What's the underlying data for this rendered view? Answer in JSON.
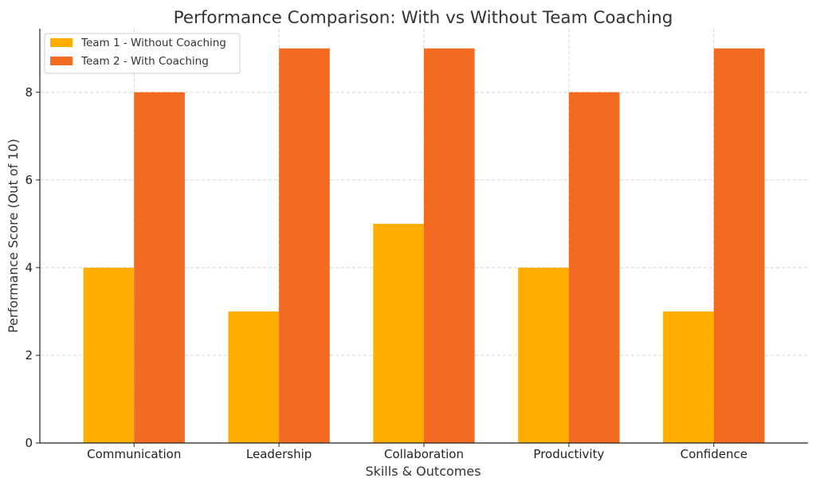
{
  "chart_data": {
    "type": "bar",
    "title": "Performance Comparison: With vs Without Team Coaching",
    "xlabel": "Skills & Outcomes",
    "ylabel": "Performance Score (Out of 10)",
    "categories": [
      "Communication",
      "Leadership",
      "Collaboration",
      "Productivity",
      "Confidence"
    ],
    "series": [
      {
        "name": "Team 1 - Without Coaching",
        "values": [
          4,
          3,
          5,
          4,
          3
        ],
        "color": "#FFAD00"
      },
      {
        "name": "Team 2 - With Coaching",
        "values": [
          8,
          9,
          9,
          8,
          9
        ],
        "color": "#F26B21"
      }
    ],
    "ylim": [
      0,
      9.45
    ],
    "yticks": [
      0,
      2,
      4,
      6,
      8
    ],
    "grid": true,
    "legend_position": "top-left"
  }
}
